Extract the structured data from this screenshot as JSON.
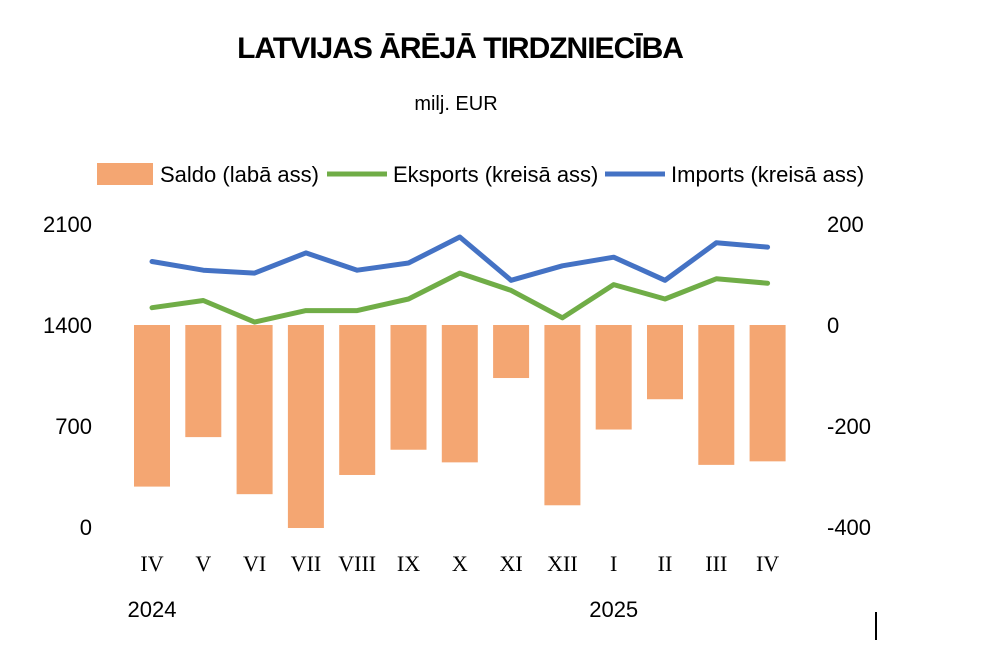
{
  "chart_data": {
    "type": "bar",
    "title": "LATVIJAS ĀRĒJĀ TIRDZNIECĪBA",
    "subtitle": "milj. EUR",
    "categories": [
      "IV",
      "V",
      "VI",
      "VII",
      "VIII",
      "IX",
      "X",
      "XI",
      "XII",
      "I",
      "II",
      "III",
      "IV"
    ],
    "years": [
      {
        "label": "2024",
        "at_category": 0
      },
      {
        "label": "2025",
        "at_category": 9
      }
    ],
    "left_axis": {
      "min": 0,
      "max": 2100,
      "ticks": [
        "0",
        "700",
        "1400",
        "2100"
      ]
    },
    "right_axis": {
      "min": -400,
      "max": 200,
      "ticks": [
        "-400",
        "-200",
        "0",
        "200"
      ]
    },
    "legend_position": "top",
    "series": [
      {
        "name": "Saldo (labā ass)",
        "type": "bar",
        "axis": "right",
        "color": "#f4a672",
        "values": [
          -320,
          -222,
          -335,
          -402,
          -297,
          -247,
          -272,
          -105,
          -357,
          -207,
          -147,
          -277,
          -270
        ]
      },
      {
        "name": "Eksports (kreisā ass)",
        "type": "line",
        "axis": "left",
        "color": "#70ad47",
        "values": [
          1520,
          1570,
          1420,
          1500,
          1500,
          1580,
          1760,
          1640,
          1450,
          1680,
          1580,
          1720,
          1690
        ]
      },
      {
        "name": "Imports (kreisā ass)",
        "type": "line",
        "axis": "left",
        "color": "#4472c4",
        "values": [
          1840,
          1780,
          1760,
          1900,
          1780,
          1830,
          2010,
          1710,
          1810,
          1870,
          1710,
          1970,
          1940
        ]
      }
    ]
  }
}
